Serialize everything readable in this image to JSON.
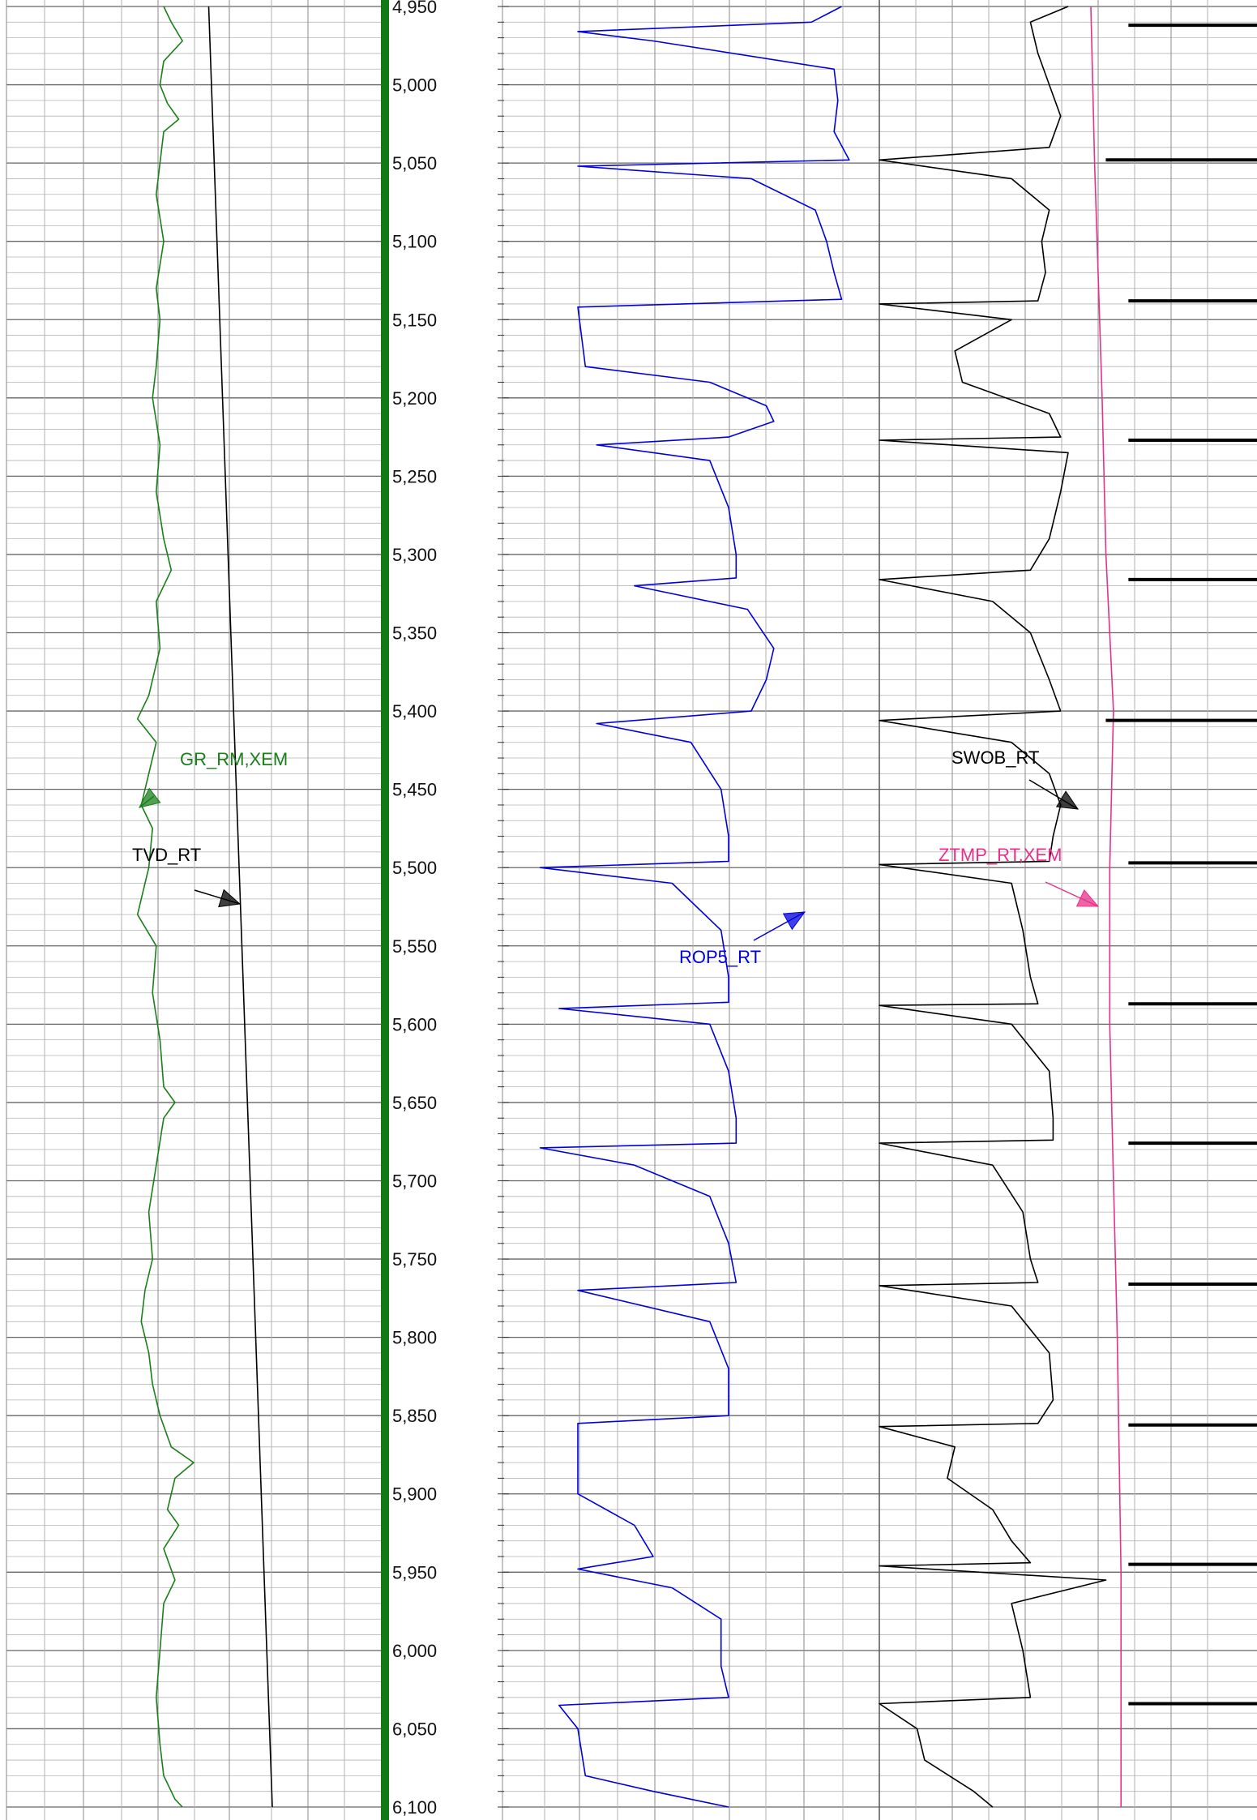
{
  "chart_data": {
    "type": "line",
    "title": "",
    "depth_axis": {
      "range": [
        4950,
        6100
      ],
      "major_step": 50,
      "minor_step": 10,
      "tick_labels": [
        "4,950",
        "5,000",
        "5,050",
        "5,100",
        "5,150",
        "5,200",
        "5,250",
        "5,300",
        "5,350",
        "5,400",
        "5,450",
        "5,500",
        "5,550",
        "5,600",
        "5,650",
        "5,700",
        "5,750",
        "5,800",
        "5,850",
        "5,900",
        "5,950",
        "6,000",
        "6,050",
        "6,100"
      ]
    },
    "tracks": [
      {
        "name": "track-1",
        "grid": true,
        "series": [
          {
            "name": "GR_RM,XEM",
            "color": "#1a7f1a",
            "points": [
              [
                4950,
                0.42
              ],
              [
                4960,
                0.44
              ],
              [
                4972,
                0.47
              ],
              [
                4985,
                0.42
              ],
              [
                5000,
                0.41
              ],
              [
                5012,
                0.43
              ],
              [
                5022,
                0.46
              ],
              [
                5030,
                0.42
              ],
              [
                5050,
                0.41
              ],
              [
                5070,
                0.4
              ],
              [
                5100,
                0.42
              ],
              [
                5130,
                0.4
              ],
              [
                5150,
                0.41
              ],
              [
                5180,
                0.4
              ],
              [
                5200,
                0.39
              ],
              [
                5230,
                0.41
              ],
              [
                5260,
                0.4
              ],
              [
                5290,
                0.42
              ],
              [
                5310,
                0.44
              ],
              [
                5330,
                0.4
              ],
              [
                5360,
                0.41
              ],
              [
                5390,
                0.38
              ],
              [
                5405,
                0.35
              ],
              [
                5420,
                0.4
              ],
              [
                5440,
                0.38
              ],
              [
                5460,
                0.36
              ],
              [
                5475,
                0.39
              ],
              [
                5500,
                0.38
              ],
              [
                5520,
                0.36
              ],
              [
                5530,
                0.35
              ],
              [
                5550,
                0.4
              ],
              [
                5580,
                0.39
              ],
              [
                5610,
                0.41
              ],
              [
                5640,
                0.42
              ],
              [
                5650,
                0.45
              ],
              [
                5660,
                0.42
              ],
              [
                5690,
                0.4
              ],
              [
                5720,
                0.38
              ],
              [
                5750,
                0.39
              ],
              [
                5770,
                0.37
              ],
              [
                5790,
                0.36
              ],
              [
                5810,
                0.38
              ],
              [
                5830,
                0.39
              ],
              [
                5850,
                0.41
              ],
              [
                5870,
                0.44
              ],
              [
                5880,
                0.5
              ],
              [
                5890,
                0.45
              ],
              [
                5910,
                0.43
              ],
              [
                5920,
                0.46
              ],
              [
                5935,
                0.42
              ],
              [
                5955,
                0.45
              ],
              [
                5970,
                0.42
              ],
              [
                6000,
                0.41
              ],
              [
                6030,
                0.4
              ],
              [
                6060,
                0.41
              ],
              [
                6080,
                0.42
              ],
              [
                6095,
                0.45
              ],
              [
                6100,
                0.47
              ]
            ]
          },
          {
            "name": "TVD_RT",
            "color": "#000000",
            "points": [
              [
                4950,
                0.54
              ],
              [
                6100,
                0.71
              ]
            ]
          }
        ]
      },
      {
        "name": "track-2",
        "grid": true,
        "series": [
          {
            "name": "ROP5_RT",
            "color": "#0000dd",
            "points": [
              [
                4950,
                0.9
              ],
              [
                4960,
                0.82
              ],
              [
                4966,
                0.2
              ],
              [
                4972,
                0.4
              ],
              [
                4990,
                0.88
              ],
              [
                5010,
                0.89
              ],
              [
                5030,
                0.88
              ],
              [
                5048,
                0.92
              ],
              [
                5052,
                0.2
              ],
              [
                5060,
                0.66
              ],
              [
                5080,
                0.83
              ],
              [
                5100,
                0.86
              ],
              [
                5120,
                0.88
              ],
              [
                5137,
                0.9
              ],
              [
                5142,
                0.2
              ],
              [
                5180,
                0.22
              ],
              [
                5190,
                0.55
              ],
              [
                5205,
                0.7
              ],
              [
                5215,
                0.72
              ],
              [
                5225,
                0.6
              ],
              [
                5230,
                0.25
              ],
              [
                5240,
                0.55
              ],
              [
                5270,
                0.6
              ],
              [
                5300,
                0.62
              ],
              [
                5315,
                0.62
              ],
              [
                5320,
                0.35
              ],
              [
                5335,
                0.65
              ],
              [
                5360,
                0.72
              ],
              [
                5380,
                0.7
              ],
              [
                5400,
                0.66
              ],
              [
                5408,
                0.25
              ],
              [
                5420,
                0.5
              ],
              [
                5450,
                0.58
              ],
              [
                5480,
                0.6
              ],
              [
                5496,
                0.6
              ],
              [
                5500,
                0.1
              ],
              [
                5510,
                0.45
              ],
              [
                5540,
                0.58
              ],
              [
                5570,
                0.6
              ],
              [
                5586,
                0.6
              ],
              [
                5590,
                0.15
              ],
              [
                5600,
                0.55
              ],
              [
                5630,
                0.6
              ],
              [
                5660,
                0.62
              ],
              [
                5676,
                0.62
              ],
              [
                5679,
                0.1
              ],
              [
                5690,
                0.35
              ],
              [
                5710,
                0.55
              ],
              [
                5740,
                0.6
              ],
              [
                5765,
                0.62
              ],
              [
                5770,
                0.2
              ],
              [
                5790,
                0.55
              ],
              [
                5820,
                0.6
              ],
              [
                5850,
                0.6
              ],
              [
                5855,
                0.2
              ],
              [
                5900,
                0.2
              ],
              [
                5920,
                0.35
              ],
              [
                5940,
                0.4
              ],
              [
                5948,
                0.2
              ],
              [
                5960,
                0.45
              ],
              [
                5980,
                0.58
              ],
              [
                6010,
                0.58
              ],
              [
                6030,
                0.6
              ],
              [
                6035,
                0.15
              ],
              [
                6050,
                0.2
              ],
              [
                6080,
                0.22
              ],
              [
                6090,
                0.4
              ],
              [
                6100,
                0.6
              ]
            ]
          }
        ]
      },
      {
        "name": "track-3",
        "grid": true,
        "series": [
          {
            "name": "SWOB_RT",
            "color": "#000000",
            "points": [
              [
                4950,
                0.5
              ],
              [
                4960,
                0.4
              ],
              [
                4980,
                0.42
              ],
              [
                5000,
                0.45
              ],
              [
                5020,
                0.48
              ],
              [
                5040,
                0.45
              ],
              [
                5048,
                0.0
              ],
              [
                5060,
                0.35
              ],
              [
                5080,
                0.45
              ],
              [
                5100,
                0.43
              ],
              [
                5120,
                0.44
              ],
              [
                5138,
                0.42
              ],
              [
                5140,
                0.0
              ],
              [
                5150,
                0.35
              ],
              [
                5170,
                0.2
              ],
              [
                5190,
                0.22
              ],
              [
                5210,
                0.45
              ],
              [
                5225,
                0.48
              ],
              [
                5227,
                0.0
              ],
              [
                5235,
                0.5
              ],
              [
                5260,
                0.48
              ],
              [
                5290,
                0.45
              ],
              [
                5310,
                0.4
              ],
              [
                5316,
                0.0
              ],
              [
                5330,
                0.3
              ],
              [
                5350,
                0.4
              ],
              [
                5380,
                0.45
              ],
              [
                5400,
                0.48
              ],
              [
                5406,
                0.0
              ],
              [
                5420,
                0.35
              ],
              [
                5440,
                0.45
              ],
              [
                5460,
                0.48
              ],
              [
                5480,
                0.46
              ],
              [
                5496,
                0.45
              ],
              [
                5498,
                0.0
              ],
              [
                5510,
                0.35
              ],
              [
                5540,
                0.38
              ],
              [
                5570,
                0.4
              ],
              [
                5587,
                0.42
              ],
              [
                5588,
                0.0
              ],
              [
                5600,
                0.35
              ],
              [
                5630,
                0.45
              ],
              [
                5660,
                0.46
              ],
              [
                5674,
                0.46
              ],
              [
                5676,
                0.0
              ],
              [
                5690,
                0.3
              ],
              [
                5720,
                0.38
              ],
              [
                5750,
                0.4
              ],
              [
                5765,
                0.42
              ],
              [
                5767,
                0.0
              ],
              [
                5780,
                0.35
              ],
              [
                5810,
                0.45
              ],
              [
                5840,
                0.46
              ],
              [
                5855,
                0.42
              ],
              [
                5857,
                0.0
              ],
              [
                5870,
                0.2
              ],
              [
                5890,
                0.18
              ],
              [
                5910,
                0.3
              ],
              [
                5930,
                0.35
              ],
              [
                5944,
                0.4
              ],
              [
                5946,
                0.0
              ],
              [
                5955,
                0.6
              ],
              [
                5970,
                0.35
              ],
              [
                6000,
                0.38
              ],
              [
                6030,
                0.4
              ],
              [
                6034,
                0.0
              ],
              [
                6050,
                0.1
              ],
              [
                6070,
                0.12
              ],
              [
                6090,
                0.25
              ],
              [
                6100,
                0.3
              ]
            ]
          },
          {
            "name": "ZTMP_RT,XEM",
            "color": "#e8308a",
            "points": [
              [
                4950,
                0.56
              ],
              [
                5050,
                0.57
              ],
              [
                5200,
                0.59
              ],
              [
                5300,
                0.6
              ],
              [
                5400,
                0.62
              ],
              [
                5500,
                0.61
              ],
              [
                5600,
                0.61
              ],
              [
                5700,
                0.62
              ],
              [
                5800,
                0.63
              ],
              [
                5950,
                0.64
              ],
              [
                6100,
                0.64
              ]
            ]
          },
          {
            "name": "",
            "color": "#000000",
            "style": "thick-markers",
            "points": [
              [
                4962,
                0.96
              ],
              [
                5048,
                0.9
              ],
              [
                5138,
                0.96
              ],
              [
                5227,
                0.96
              ],
              [
                5316,
                0.96
              ],
              [
                5406,
                0.9
              ],
              [
                5497,
                0.96
              ],
              [
                5587,
                0.96
              ],
              [
                5676,
                0.96
              ],
              [
                5766,
                0.96
              ],
              [
                5856,
                0.96
              ],
              [
                5945,
                0.96
              ],
              [
                6034,
                0.96
              ]
            ]
          }
        ]
      }
    ],
    "annotations": [
      {
        "text": "GR_RM,XEM",
        "color": "#1a7f1a",
        "depth": 5462
      },
      {
        "text": "TVD_RT",
        "color": "#000000",
        "depth": 5524
      },
      {
        "text": "ROP5_RT",
        "color": "#0000dd",
        "depth": 5529
      },
      {
        "text": "SWOB_RT",
        "color": "#000000",
        "depth": 5461
      },
      {
        "text": "ZTMP_RT,XEM",
        "color": "#e8308a",
        "depth": 5523
      }
    ],
    "depth_bar_color": "#137a13"
  }
}
